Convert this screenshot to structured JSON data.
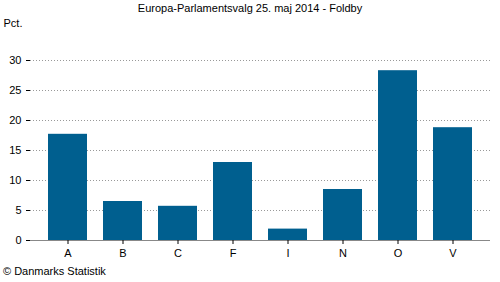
{
  "chart_data": {
    "type": "bar",
    "title": "Europa-Parlamentsvalg 25. maj 2014 - Foldby",
    "y_label": "Pct.",
    "caption": "© Danmarks Statistik",
    "categories": [
      "A",
      "B",
      "C",
      "F",
      "I",
      "N",
      "O",
      "V"
    ],
    "values": [
      17.7,
      6.5,
      5.7,
      13.0,
      1.9,
      8.5,
      28.3,
      18.8
    ],
    "color": "#005f8f",
    "ylim": [
      0,
      30
    ],
    "yticks": [
      0,
      5,
      10,
      15,
      20,
      25,
      30
    ],
    "grid": true
  }
}
